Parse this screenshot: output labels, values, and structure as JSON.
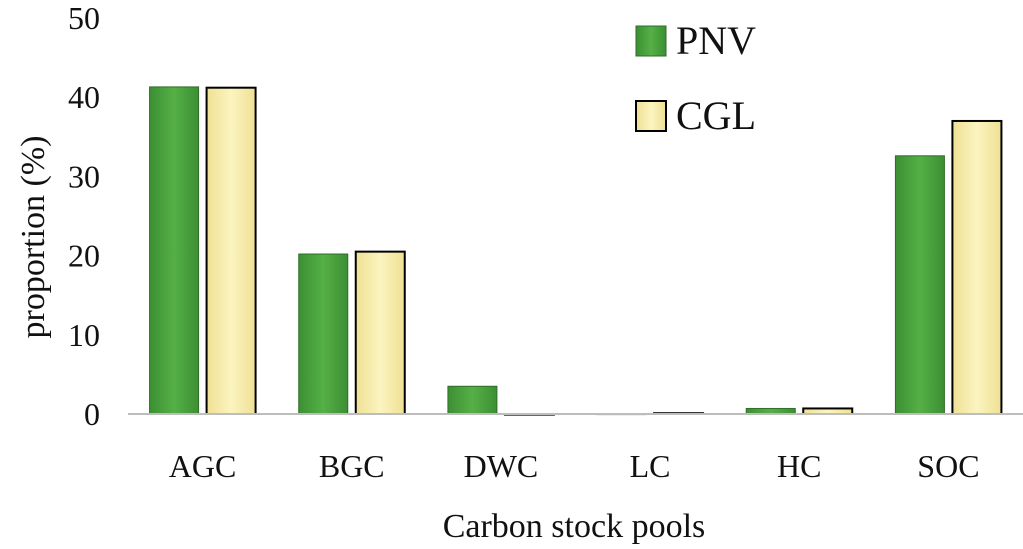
{
  "chart_data": {
    "type": "bar",
    "title": "",
    "xlabel": "Carbon stock pools",
    "ylabel": "proportion  (%)",
    "ylim": [
      0,
      50
    ],
    "yticks": [
      0,
      10,
      20,
      30,
      40,
      50
    ],
    "grid": false,
    "legend_position": "top-right",
    "categories": [
      "AGC",
      "BGC",
      "DWC",
      "LC",
      "HC",
      "SOC"
    ],
    "series": [
      {
        "name": "PNV",
        "color": "#4aa33c",
        "values": [
          41.3,
          20.2,
          3.5,
          0.0,
          0.7,
          32.6
        ]
      },
      {
        "name": "CGL",
        "color": "#f6eca6",
        "values": [
          41.2,
          20.5,
          0.0,
          0.1,
          0.7,
          37.0
        ]
      }
    ]
  }
}
